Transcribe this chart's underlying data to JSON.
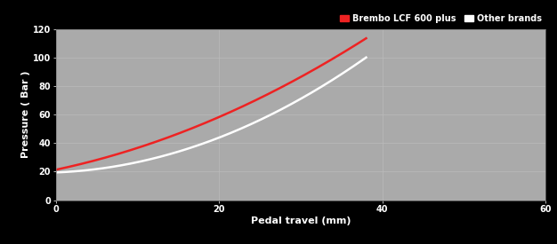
{
  "xlabel": "Pedal travel (mm)",
  "ylabel": "Pressure ( Bar )",
  "xlim": [
    0,
    60
  ],
  "ylim": [
    0,
    120
  ],
  "xticks": [
    0,
    20,
    40,
    60
  ],
  "yticks": [
    0,
    20,
    40,
    60,
    80,
    100,
    120
  ],
  "xtick_labels": [
    "0",
    "20",
    "40",
    "60"
  ],
  "ytick_labels": [
    "0",
    "20",
    "40",
    "60",
    "80",
    "100",
    "120"
  ],
  "plot_bg_color": "#aaaaaa",
  "outer_bg_color": "#000000",
  "brembo_color": "#ee2222",
  "other_color": "#ffffff",
  "brembo_x": [
    0,
    5,
    10,
    15,
    20,
    25,
    30,
    35,
    38
  ],
  "brembo_y": [
    22,
    28,
    36,
    46,
    58,
    72,
    88,
    104,
    112
  ],
  "other_x": [
    0,
    5,
    10,
    15,
    20,
    25,
    30,
    35,
    38
  ],
  "other_y": [
    20,
    22,
    26,
    33,
    43,
    57,
    73,
    90,
    98
  ],
  "legend_brembo_label": "Brembo LCF 600 plus",
  "legend_other_label": "Other brands",
  "tick_color": "#ffffff",
  "label_color": "#ffffff",
  "tick_fontsize": 7,
  "label_fontsize": 8,
  "legend_fontsize": 7,
  "line_width": 1.8
}
